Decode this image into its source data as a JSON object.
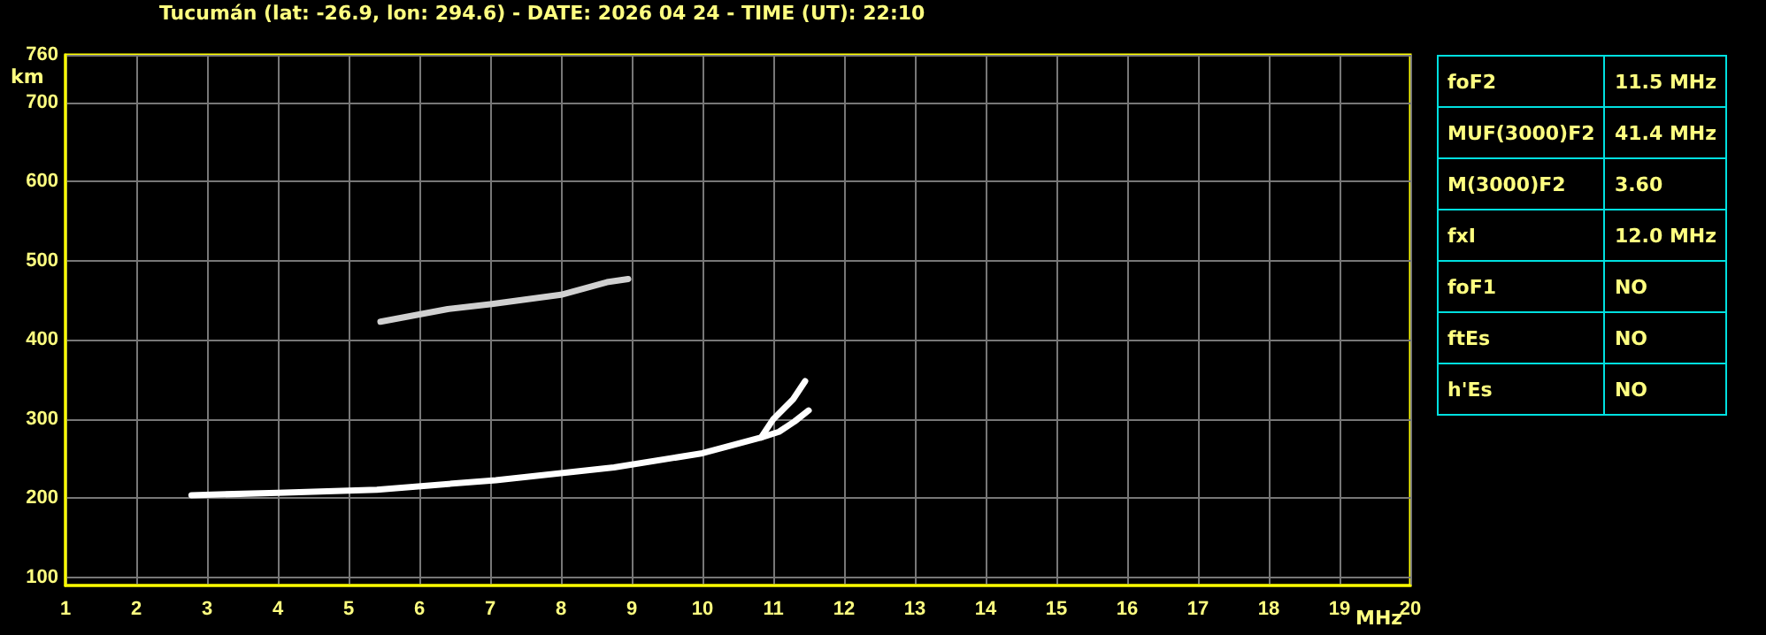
{
  "chart_data": [
    {
      "type": "line",
      "title": "Tucumán (lat: -26.9, lon: 294.6) - DATE: 2026 04 24 - TIME (UT): 22:10",
      "xlabel": "MHz",
      "ylabel": "km",
      "series": [
        {
          "color": "#ffffff",
          "x": [
            2.78,
            4.0,
            5.4,
            7.08,
            8.75,
            10.0,
            10.83,
            11.0,
            11.28,
            11.45
          ],
          "values": [
            204,
            207,
            211,
            223,
            239,
            257,
            277,
            300,
            325,
            348
          ]
        },
        {
          "color": "#ffffff",
          "x": [
            10.83,
            11.08,
            11.3,
            11.5
          ],
          "values": [
            277,
            284,
            297,
            311
          ]
        },
        {
          "color": "#d0d0d0",
          "x": [
            5.45,
            6.4,
            7.0,
            8.0,
            8.65,
            8.95
          ],
          "values": [
            423,
            439,
            445,
            457,
            473,
            477
          ]
        }
      ],
      "xlim": [
        1,
        20
      ],
      "xticks": [
        1,
        2,
        3,
        4,
        5,
        6,
        7,
        8,
        9,
        10,
        11,
        12,
        13,
        14,
        15,
        16,
        17,
        18,
        19,
        20
      ],
      "ylim": [
        90,
        760
      ],
      "yticks": [
        100,
        200,
        300,
        400,
        500,
        600,
        700,
        760
      ],
      "grid": true,
      "marker": "none",
      "line_style": "solid"
    },
    {
      "type": "other",
      "annotations": [
        "foF2",
        "11.5 MHz",
        "MUF(3000)F2",
        "41.4 MHz",
        "M(3000)F2",
        "3.60",
        "fxI",
        "12.0 MHz",
        "foF1",
        "NO",
        "ftEs",
        "NO",
        "h'Es",
        "NO"
      ]
    }
  ]
}
